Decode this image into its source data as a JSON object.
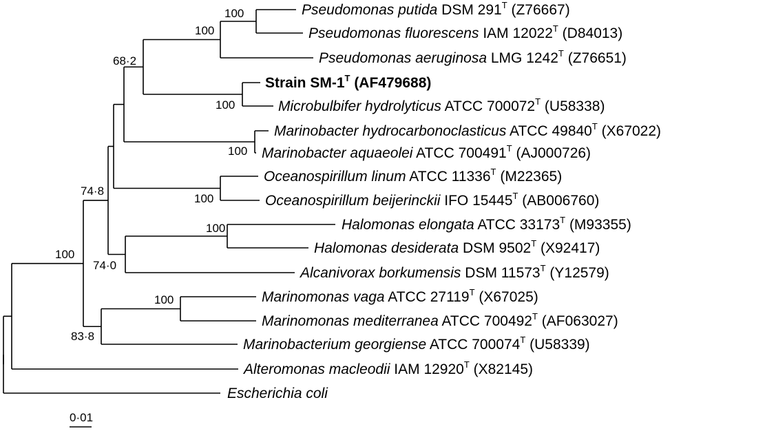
{
  "taxa": [
    {
      "species": "Pseudomonas putida",
      "strain": "DSM 291",
      "sup": "T",
      "accession": "(Z76667)"
    },
    {
      "species": "Pseudomonas fluorescens",
      "strain": "IAM 12022",
      "sup": "T",
      "accession": "(D84013)"
    },
    {
      "species": "Pseudomonas aeruginosa",
      "strain": "LMG 1242",
      "sup": "T",
      "accession": "(Z76651)"
    },
    {
      "species": "",
      "strain": "Strain SM-1",
      "sup": "T",
      "accession": "(AF479688)",
      "highlight": true
    },
    {
      "species": "Microbulbifer hydrolyticus",
      "strain": "ATCC 700072",
      "sup": "T",
      "accession": "(U58338)"
    },
    {
      "species": "Marinobacter hydrocarbonoclasticus",
      "strain": "ATCC 49840",
      "sup": "T",
      "accession": "(X67022)"
    },
    {
      "species": "Marinobacter aquaeolei",
      "strain": "ATCC 700491",
      "sup": "T",
      "accession": "(AJ000726)"
    },
    {
      "species": "Oceanospirillum linum",
      "strain": "ATCC 11336",
      "sup": "T",
      "accession": "(M22365)"
    },
    {
      "species": "Oceanospirillum beijerinckii",
      "strain": "IFO 15445",
      "sup": "T",
      "accession": "(AB006760)"
    },
    {
      "species": "Halomonas elongata",
      "strain": "ATCC 33173",
      "sup": "T",
      "accession": "(M93355)"
    },
    {
      "species": "Halomonas desiderata",
      "strain": "DSM 9502",
      "sup": "T",
      "accession": "(X92417)"
    },
    {
      "species": "Alcanivorax borkumensis",
      "strain": "DSM 11573",
      "sup": "T",
      "accession": "(Y12579)"
    },
    {
      "species": "Marinomonas vaga",
      "strain": "ATCC 27119",
      "sup": "T",
      "accession": "(X67025)"
    },
    {
      "species": "Marinomonas mediterranea",
      "strain": "ATCC 700492",
      "sup": "T",
      "accession": "(AF063027)"
    },
    {
      "species": "Marinobacterium georgiense",
      "strain": "ATCC 700074",
      "sup": "T",
      "accession": "(U58339)"
    },
    {
      "species": "Alteromonas macleodii",
      "strain": "IAM 12920",
      "sup": "T",
      "accession": "(X82145)"
    },
    {
      "species": "Escherichia coli",
      "strain": "",
      "sup": "",
      "accession": ""
    }
  ],
  "bootstrap": [
    "100",
    "100",
    "68·2",
    "100",
    "100",
    "100",
    "74·8",
    "100",
    "74·0",
    "100",
    "100",
    "83·8"
  ],
  "scale_bar": {
    "label": "0·01"
  }
}
